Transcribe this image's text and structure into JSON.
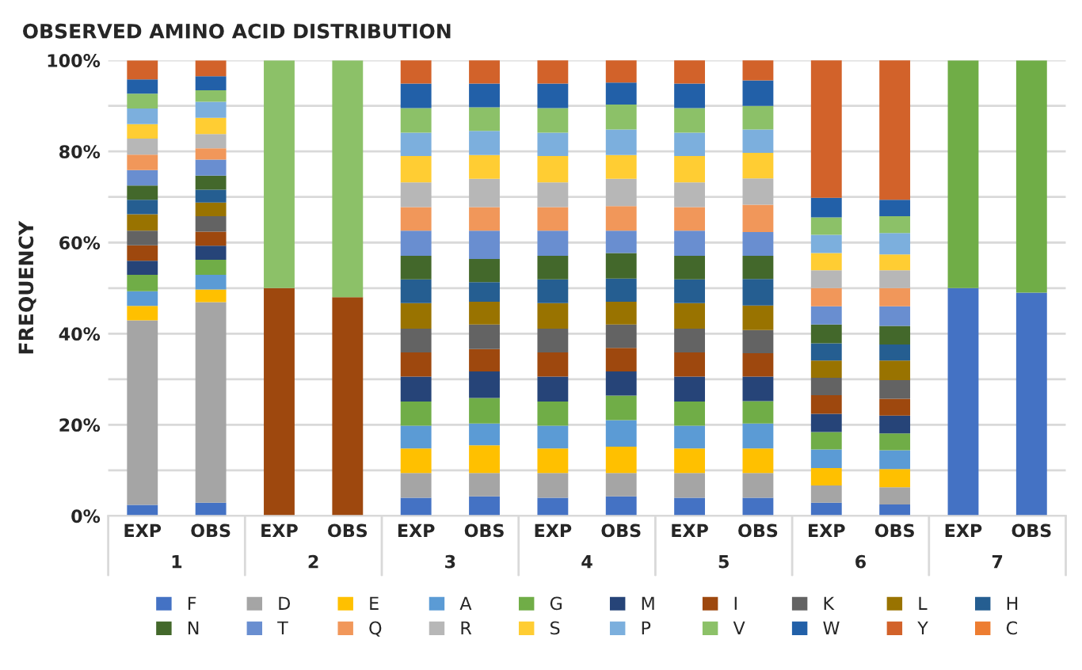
{
  "chart_data": {
    "type": "bar",
    "stacked": true,
    "title": "OBSERVED AMINO ACID DISTRIBUTION",
    "ylabel": "FREQUENCY",
    "categories": [
      "EXP",
      "OBS",
      "EXP",
      "OBS",
      "EXP",
      "OBS",
      "EXP",
      "OBS",
      "EXP",
      "OBS",
      "EXP",
      "OBS",
      "EXP",
      "OBS"
    ],
    "annotations": [
      "1",
      "2",
      "3",
      "4",
      "5",
      "6",
      "7"
    ],
    "ylim": [
      0,
      100
    ],
    "yticks": [
      {
        "value": 0,
        "label": "0%"
      },
      {
        "value": 10,
        "label": null
      },
      {
        "value": 20,
        "label": "20%"
      },
      {
        "value": 30,
        "label": null
      },
      {
        "value": 40,
        "label": "40%"
      },
      {
        "value": 50,
        "label": null
      },
      {
        "value": 60,
        "label": "60%"
      },
      {
        "value": 70,
        "label": null
      },
      {
        "value": 80,
        "label": "80%"
      },
      {
        "value": 90,
        "label": null
      },
      {
        "value": 100,
        "label": "100%"
      }
    ],
    "grid": "y",
    "legend": "bottom",
    "series": [
      {
        "name": "F",
        "color": "#4472c4",
        "values": [
          2.4,
          2.9,
          null,
          null,
          4.0,
          4.3,
          4.0,
          4.3,
          4.0,
          4.0,
          2.9,
          2.5,
          50,
          49
        ]
      },
      {
        "name": "D",
        "color": "#a5a5a5",
        "values": [
          40.5,
          44.0,
          null,
          null,
          5.4,
          5.1,
          5.4,
          5.1,
          5.4,
          5.4,
          3.8,
          3.8,
          null,
          null
        ]
      },
      {
        "name": "E",
        "color": "#ffc000",
        "values": [
          3.2,
          2.8,
          null,
          null,
          5.4,
          6.1,
          5.4,
          5.8,
          5.4,
          5.4,
          3.8,
          4.0,
          null,
          null
        ]
      },
      {
        "name": "A",
        "color": "#5b9bd5",
        "values": [
          3.2,
          3.2,
          null,
          null,
          5.0,
          4.8,
          5.0,
          5.8,
          5.0,
          5.5,
          4.1,
          4.1,
          null,
          null
        ]
      },
      {
        "name": "G",
        "color": "#70ad47",
        "values": [
          3.6,
          3.3,
          null,
          null,
          5.3,
          5.6,
          5.3,
          5.4,
          5.3,
          4.9,
          3.8,
          3.7,
          50,
          51
        ]
      },
      {
        "name": "M",
        "color": "#264478",
        "values": [
          3.1,
          3.1,
          null,
          null,
          5.5,
          5.8,
          5.5,
          5.3,
          5.5,
          5.4,
          4.0,
          3.9,
          null,
          null
        ]
      },
      {
        "name": "I",
        "color": "#9e480e",
        "values": [
          3.4,
          3.1,
          50,
          48,
          5.3,
          4.9,
          5.3,
          5.2,
          5.3,
          5.1,
          4.1,
          3.7,
          null,
          null
        ]
      },
      {
        "name": "K",
        "color": "#636363",
        "values": [
          3.2,
          3.4,
          null,
          null,
          5.2,
          5.4,
          5.2,
          5.1,
          5.2,
          5.1,
          3.8,
          4.1,
          null,
          null
        ]
      },
      {
        "name": "L",
        "color": "#997300",
        "values": [
          3.6,
          3.0,
          null,
          null,
          5.6,
          5.0,
          5.6,
          5.0,
          5.6,
          5.4,
          3.8,
          4.3,
          null,
          null
        ]
      },
      {
        "name": "H",
        "color": "#255e91",
        "values": [
          3.2,
          2.8,
          null,
          null,
          5.2,
          4.3,
          5.2,
          5.1,
          5.2,
          5.8,
          3.8,
          3.5,
          null,
          null
        ]
      },
      {
        "name": "N",
        "color": "#43682b",
        "values": [
          3.1,
          3.1,
          null,
          null,
          5.2,
          5.1,
          5.2,
          5.6,
          5.2,
          5.1,
          4.1,
          4.1,
          null,
          null
        ]
      },
      {
        "name": "T",
        "color": "#698ed0",
        "values": [
          3.4,
          3.5,
          null,
          null,
          5.5,
          6.2,
          5.5,
          4.9,
          5.5,
          5.2,
          4.0,
          4.3,
          null,
          null
        ]
      },
      {
        "name": "Q",
        "color": "#f1975a",
        "values": [
          3.4,
          2.5,
          null,
          null,
          5.2,
          5.2,
          5.2,
          5.4,
          5.2,
          6.0,
          4.0,
          4.0,
          null,
          null
        ]
      },
      {
        "name": "R",
        "color": "#b7b7b7",
        "values": [
          3.5,
          3.1,
          null,
          null,
          5.4,
          6.2,
          5.4,
          6.0,
          5.4,
          5.8,
          3.9,
          3.9,
          null,
          null
        ]
      },
      {
        "name": "S",
        "color": "#ffcd33",
        "values": [
          3.2,
          3.6,
          null,
          null,
          5.8,
          5.2,
          5.8,
          5.2,
          5.8,
          5.6,
          3.8,
          3.5,
          null,
          null
        ]
      },
      {
        "name": "P",
        "color": "#7cafdd",
        "values": [
          3.4,
          3.5,
          null,
          null,
          5.1,
          5.3,
          5.1,
          5.6,
          5.1,
          5.1,
          4.0,
          4.7,
          null,
          null
        ]
      },
      {
        "name": "V",
        "color": "#8cc168",
        "values": [
          3.3,
          2.5,
          50,
          52,
          5.4,
          5.2,
          5.4,
          5.5,
          5.4,
          5.2,
          3.8,
          3.7,
          null,
          null
        ]
      },
      {
        "name": "W",
        "color": "#2260a8",
        "values": [
          3.1,
          3.1,
          null,
          null,
          5.4,
          5.2,
          5.4,
          4.8,
          5.4,
          5.6,
          4.3,
          3.6,
          null,
          null
        ]
      },
      {
        "name": "Y",
        "color": "#d2622a",
        "values": [
          4.2,
          3.5,
          null,
          null,
          5.2,
          5.4,
          5.2,
          5.2,
          5.2,
          4.7,
          30.4,
          30.9,
          null,
          null
        ]
      },
      {
        "name": "C",
        "color": "#ed7d31",
        "values": [
          null,
          null,
          null,
          null,
          null,
          null,
          null,
          null,
          null,
          null,
          null,
          null,
          null,
          null
        ]
      }
    ]
  }
}
